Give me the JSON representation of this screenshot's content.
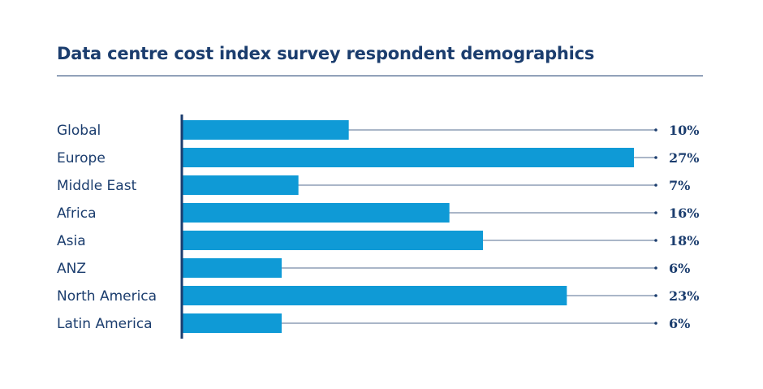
{
  "title": "Data centre cost index survey respondent demographics",
  "colors": {
    "bar": "#0f9ad6",
    "text": "#1b3d6e",
    "axis": "#1b3d6e",
    "leader": "#1b3d6e"
  },
  "chart_data": {
    "type": "bar",
    "orientation": "horizontal",
    "title": "Data centre cost index survey respondent demographics",
    "categories": [
      "Global",
      "Europe",
      "Middle East",
      "Africa",
      "Asia",
      "ANZ",
      "North America",
      "Latin America"
    ],
    "values": [
      10,
      27,
      7,
      16,
      18,
      6,
      23,
      6
    ],
    "value_labels": [
      "10%",
      "27%",
      "7%",
      "16%",
      "18%",
      "6%",
      "23%",
      "6%"
    ],
    "unit": "%",
    "xlim": [
      0,
      27
    ],
    "grid": false,
    "legend": "none"
  }
}
